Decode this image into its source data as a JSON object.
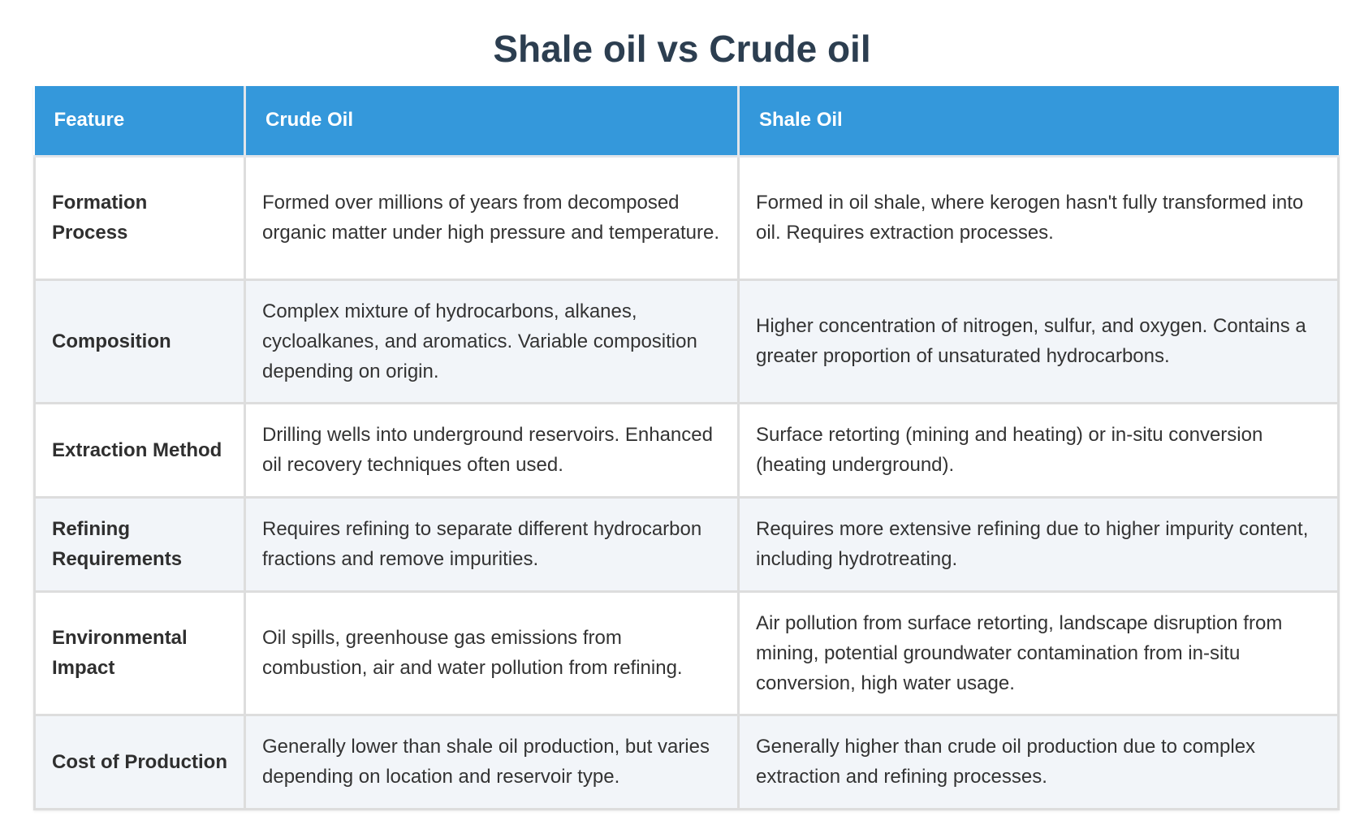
{
  "title": "Shale oil vs Crude oil",
  "table": {
    "headers": [
      "Feature",
      "Crude Oil",
      "Shale Oil"
    ],
    "rows": [
      {
        "feature": "Formation Process",
        "crude": "Formed over millions of years from decomposed organic matter under high pressure and temperature.",
        "shale": "Formed in oil shale, where kerogen hasn't fully transformed into oil. Requires extraction processes."
      },
      {
        "feature": "Composition",
        "crude": "Complex mixture of hydrocarbons, alkanes, cycloalkanes, and aromatics. Variable composition depending on origin.",
        "shale": "Higher concentration of nitrogen, sulfur, and oxygen. Contains a greater proportion of unsaturated hydrocarbons."
      },
      {
        "feature": "Extraction Method",
        "crude": "Drilling wells into underground reservoirs. Enhanced oil recovery techniques often used.",
        "shale": "Surface retorting (mining and heating) or in-situ conversion (heating underground)."
      },
      {
        "feature": "Refining Requirements",
        "crude": "Requires refining to separate different hydrocarbon fractions and remove impurities.",
        "shale": "Requires more extensive refining due to higher impurity content, including hydrotreating."
      },
      {
        "feature": "Environmental Impact",
        "crude": "Oil spills, greenhouse gas emissions from combustion, air and water pollution from refining.",
        "shale": "Air pollution from surface retorting, landscape disruption from mining, potential groundwater contamination from in-situ conversion, high water usage."
      },
      {
        "feature": "Cost of Production",
        "crude": "Generally lower than shale oil production, but varies depending on location and reservoir type.",
        "shale": "Generally higher than crude oil production due to complex extraction and refining processes."
      }
    ]
  },
  "colors": {
    "header_bg": "#3498db",
    "title_color": "#2c3e50",
    "stripe_bg": "#f2f5f9"
  }
}
